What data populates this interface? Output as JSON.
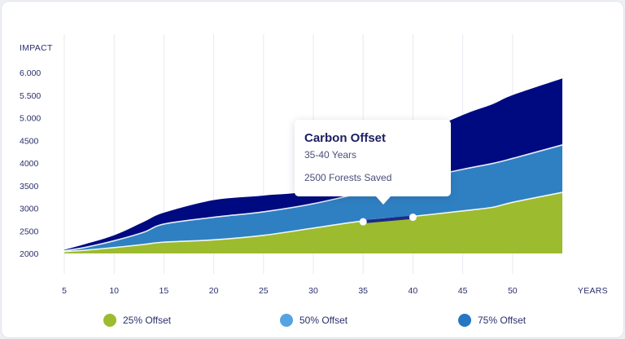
{
  "chart_data": {
    "type": "area",
    "ylabel": "IMPACT",
    "xlabel": "YEARS",
    "x_ticks": [
      "5",
      "10",
      "15",
      "20",
      "25",
      "30",
      "35",
      "40",
      "45",
      "50"
    ],
    "y_ticks": [
      "2000",
      "2500",
      "3000",
      "3500",
      "4000",
      "4500",
      "5.000",
      "5.500",
      "6.000"
    ],
    "xlim": [
      5,
      55
    ],
    "ylim": [
      2000,
      6000
    ],
    "grid": "vertical",
    "x": [
      5,
      7,
      10,
      13,
      15,
      20,
      25,
      30,
      35,
      40,
      45,
      48,
      50,
      55
    ],
    "series": [
      {
        "name": "25% Offset",
        "color": "#9cbb2e",
        "values": [
          2040,
          2070,
          2130,
          2200,
          2250,
          2300,
          2400,
          2560,
          2720,
          2820,
          2940,
          3020,
          3130,
          3350
        ]
      },
      {
        "name": "50% Offset",
        "color": "#2f80c2",
        "values": [
          2060,
          2130,
          2280,
          2470,
          2650,
          2800,
          2920,
          3100,
          3350,
          3620,
          3860,
          3990,
          4100,
          4400
        ]
      },
      {
        "name": "75% Offset",
        "color": "#000a80",
        "values": [
          2080,
          2200,
          2400,
          2700,
          2900,
          3180,
          3280,
          3420,
          4010,
          4560,
          5060,
          5300,
          5500,
          5870
        ]
      }
    ],
    "highlight": {
      "x": [
        35,
        40
      ],
      "values": [
        2700,
        2800
      ]
    },
    "legend_position": "bottom"
  },
  "tooltip": {
    "title": "Carbon Offset",
    "range": "35-40 Years",
    "value": "2500 Forests Saved"
  }
}
